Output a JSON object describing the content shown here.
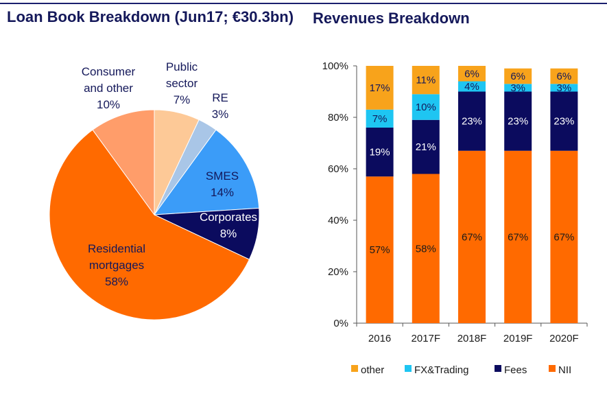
{
  "titles": {
    "left": "Loan Book Breakdown (Jun17; €30.3bn)",
    "right": "Revenues Breakdown"
  },
  "chart_data": [
    {
      "type": "pie",
      "title": "Loan Book Breakdown (Jun17; €30.3bn)",
      "slices": [
        {
          "name": "Public sector",
          "value": 7,
          "label_lines": [
            "Public",
            "sector",
            "7%"
          ],
          "color": "#fdc997",
          "text_color": "#14185a"
        },
        {
          "name": "RE",
          "value": 3,
          "label_lines": [
            "RE",
            "3%"
          ],
          "color": "#a9c6e7",
          "text_color": "#14185a"
        },
        {
          "name": "SMES",
          "value": 14,
          "label_lines": [
            "SMES",
            "14%"
          ],
          "color": "#3b9cf8",
          "text_color": "#14185a"
        },
        {
          "name": "Corporates",
          "value": 8,
          "label_lines": [
            "Corporates",
            "8%"
          ],
          "color": "#0b0b5e",
          "text_color": "#ffffff"
        },
        {
          "name": "Residential mortgages",
          "value": 58,
          "label_lines": [
            "Residential",
            "mortgages",
            "58%"
          ],
          "color": "#ff6a00",
          "text_color": "#14185a"
        },
        {
          "name": "Consumer and other",
          "value": 10,
          "label_lines": [
            "Consumer",
            "and other",
            "10%"
          ],
          "color": "#ff9d6a",
          "text_color": "#14185a"
        }
      ]
    },
    {
      "type": "bar",
      "stacked": true,
      "title": "Revenues Breakdown",
      "categories": [
        "2016",
        "2017F",
        "2018F",
        "2019F",
        "2020F"
      ],
      "ylim": [
        0,
        100
      ],
      "yticks": [
        0,
        20,
        40,
        60,
        80,
        100
      ],
      "ytick_labels": [
        "0%",
        "20%",
        "40%",
        "60%",
        "80%",
        "100%"
      ],
      "series": [
        {
          "name": "NII",
          "color": "#ff6a00",
          "label_color": "#1a1a1a",
          "values": [
            57,
            58,
            67,
            67,
            67
          ],
          "labels": [
            "57%",
            "58%",
            "67%",
            "67%",
            "67%"
          ]
        },
        {
          "name": "Fees",
          "color": "#0b0b5e",
          "label_color": "#ffffff",
          "values": [
            19,
            21,
            23,
            23,
            23
          ],
          "labels": [
            "19%",
            "21%",
            "23%",
            "23%",
            "23%"
          ]
        },
        {
          "name": "FX&Trading",
          "color": "#1ec5f2",
          "label_color": "#14185a",
          "values": [
            7,
            10,
            4,
            3,
            3
          ],
          "labels": [
            "7%",
            "10%",
            "4%",
            "3%",
            "3%"
          ]
        },
        {
          "name": "other",
          "color": "#f8a31b",
          "label_color": "#14185a",
          "values": [
            17,
            11,
            6,
            6,
            6
          ],
          "labels": [
            "17%",
            "11%",
            "6%",
            "6%",
            "6%"
          ]
        }
      ],
      "legend": [
        {
          "name": "other",
          "color": "#f8a31b"
        },
        {
          "name": "FX&Trading",
          "color": "#1ec5f2"
        },
        {
          "name": "Fees",
          "color": "#0b0b5e"
        },
        {
          "name": "NII",
          "color": "#ff6a00"
        }
      ]
    }
  ]
}
